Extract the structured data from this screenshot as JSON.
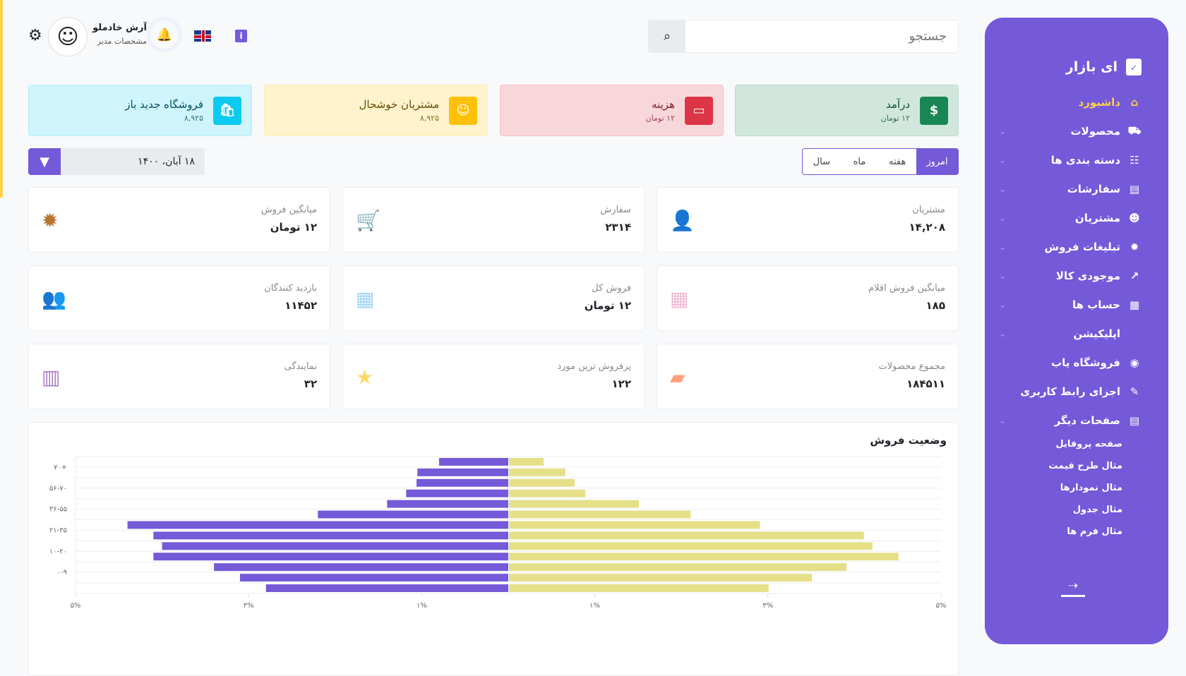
{
  "sidebar": {
    "brand": "ای بازار",
    "items": [
      {
        "label": "داشبورد",
        "icon": "home-icon",
        "active": true
      },
      {
        "label": "محصولات",
        "icon": "truck-icon",
        "chevron": true
      },
      {
        "label": "دسته بندی ها",
        "icon": "sitemap-icon",
        "chevron": true
      },
      {
        "label": "سفارشات",
        "icon": "document-icon",
        "chevron": true
      },
      {
        "label": "مشتریان",
        "icon": "user-icon",
        "chevron": true
      },
      {
        "label": "تبلیغات فروش",
        "icon": "percent-badge-icon",
        "chevron": true
      },
      {
        "label": "موجودی کالا",
        "icon": "chart-growth-icon",
        "chevron": true
      },
      {
        "label": "حساب ها",
        "icon": "calculator-icon",
        "chevron": true
      },
      {
        "label": "اپلیکیشن",
        "icon": "code-icon",
        "chevron": true
      },
      {
        "label": "فروشگاه یاب",
        "icon": "location-icon"
      },
      {
        "label": "اجزای رابط کاربری",
        "icon": "palette-icon"
      },
      {
        "label": "صفحات دیگر",
        "icon": "page-icon",
        "chevron": true
      }
    ],
    "subitems": [
      "صفحه پروفایل",
      "مثال طرح قیمت",
      "مثال نمودارها",
      "مثال جدول",
      "مثال فرم ها"
    ]
  },
  "header": {
    "search_placeholder": "جستجو",
    "user_name": "آرش خادملو",
    "user_role": "مشخصات مدیر",
    "info": "i"
  },
  "top_cards": [
    {
      "title": "درآمد",
      "value": "۱۲ تومان",
      "icon": "$",
      "bg": "#d1e7dd",
      "border": "#badbcc",
      "icon_bg": "#198754",
      "color": "#0f5132"
    },
    {
      "title": "هزینه",
      "value": "۱۲ تومان",
      "icon": "▭",
      "bg": "#f8d7da",
      "border": "#f5c2c7",
      "icon_bg": "#dc3545",
      "color": "#842029"
    },
    {
      "title": "مشتریان خوشحال",
      "value": "۸,۹۲۵",
      "icon": "☺",
      "bg": "#fff3cd",
      "border": "#ffecb5",
      "icon_bg": "#ffc107",
      "color": "#664d03"
    },
    {
      "title": "فروشگاه جدید باز",
      "value": "۸,۹۲۵",
      "icon": "🛍",
      "bg": "#cff4fc",
      "border": "#b6effb",
      "icon_bg": "#0dcaf0",
      "color": "#055160"
    }
  ],
  "filter": {
    "periods": [
      "امروز",
      "هفته",
      "ماه",
      "سال"
    ],
    "date": "۱۸ آبان، ۱۴۰۰"
  },
  "stats": [
    {
      "label": "مشتریان",
      "value": "۱۴,۲۰۸",
      "icon": "person-icon",
      "glyph": "👤",
      "color": "#ffa07a"
    },
    {
      "label": "سفارش",
      "value": "۲۳۱۴",
      "icon": "cart-icon",
      "glyph": "🛒",
      "color": "#a77fc0"
    },
    {
      "label": "میانگین فروش",
      "value": "۱۲ تومان",
      "icon": "discount-icon",
      "glyph": "✹",
      "color": "#b87333"
    },
    {
      "label": "میانگین فروش اقلام",
      "value": "۱۸۵",
      "icon": "calculator-icon",
      "glyph": "▦",
      "color": "#f0b6d0"
    },
    {
      "label": "فروش کل",
      "value": "۱۲ تومان",
      "icon": "grid-icon",
      "glyph": "▦",
      "color": "#9fd3f5"
    },
    {
      "label": "بازدید کنندگان",
      "value": "۱۱۴۵۲",
      "icon": "users-icon",
      "glyph": "👥",
      "color": "#8ed6a8"
    },
    {
      "label": "مجموع محصولات",
      "value": "۱۸۴۵۱۱",
      "icon": "bag-icon",
      "glyph": "▰",
      "color": "#ffa07a"
    },
    {
      "label": "پرفروش ترین مورد",
      "value": "۱۲۲",
      "icon": "star-icon",
      "glyph": "★",
      "color": "#ffd966"
    },
    {
      "label": "نمایندگی",
      "value": "۳۲",
      "icon": "handshake-chart-icon",
      "glyph": "▥",
      "color": "#a77fc0"
    }
  ],
  "chart_data": {
    "type": "bar",
    "title": "وضعیت فروش",
    "orientation": "horizontal-diverging",
    "y_tick_labels": [
      "۷۰+",
      "۵۶-۷۰",
      "۳۶-۵۵",
      "۲۱-۳۵",
      "۱۰-۲۰",
      "۰-۹"
    ],
    "x_tick_labels": [
      "۵%",
      "۳%",
      "۱%",
      "۱%",
      "۳%",
      "۵%"
    ],
    "x_ticks": [
      -5,
      -3,
      -1,
      1,
      3,
      5
    ],
    "xlim": [
      -5,
      5
    ],
    "series": [
      {
        "name": "left",
        "color": "#7459d9",
        "values": [
          0.8,
          1.05,
          1.06,
          1.18,
          1.4,
          2.2,
          4.4,
          4.1,
          4.0,
          4.1,
          3.4,
          3.1,
          2.8
        ]
      },
      {
        "name": "right",
        "color": "#e5df88",
        "values": [
          0.4,
          0.65,
          0.76,
          0.88,
          1.5,
          2.1,
          2.9,
          4.1,
          4.2,
          4.5,
          3.9,
          3.5,
          3.0
        ]
      }
    ]
  }
}
